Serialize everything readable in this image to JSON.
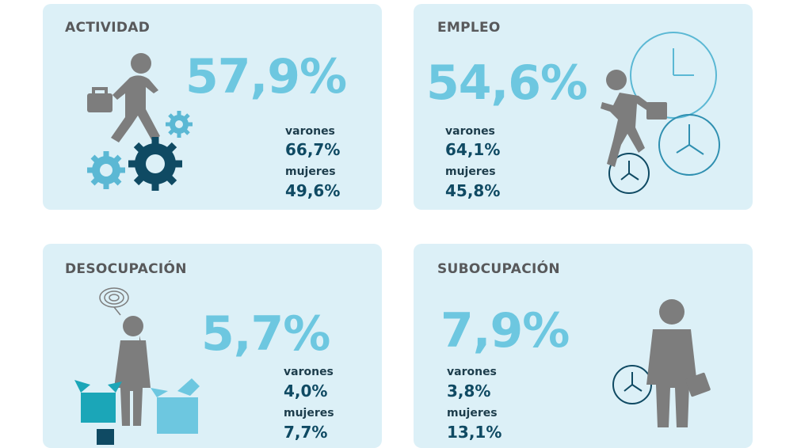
{
  "cards": [
    {
      "title": "ACTIVIDAD",
      "value": "57,9%",
      "varones_label": "varones",
      "varones_value": "66,7%",
      "mujeres_label": "mujeres",
      "mujeres_value": "49,6%"
    },
    {
      "title": "EMPLEO",
      "value": "54,6%",
      "varones_label": "varones",
      "varones_value": "64,1%",
      "mujeres_label": "mujeres",
      "mujeres_value": "45,8%"
    },
    {
      "title": "DESOCUPACIÓN",
      "value": "5,7%",
      "varones_label": "varones",
      "varones_value": "4,0%",
      "mujeres_label": "mujeres",
      "mujeres_value": "7,7%"
    },
    {
      "title": "SUBOCUPACIÓN",
      "value": "7,9%",
      "varones_label": "varones",
      "varones_value": "3,8%",
      "mujeres_label": "mujeres",
      "mujeres_value": "13,1%"
    }
  ],
  "colors": {
    "card_bg": "#dcf0f7",
    "accent": "#6dc7e0",
    "dark_value": "#0f4a63",
    "title": "#58595b",
    "figure": "#7d7d7d"
  },
  "icons": [
    "walking-man-icon",
    "gear-icon",
    "running-man-icon",
    "clock-icon",
    "confused-man-icon",
    "box-icon",
    "standing-man-icon",
    "briefcase-icon"
  ]
}
